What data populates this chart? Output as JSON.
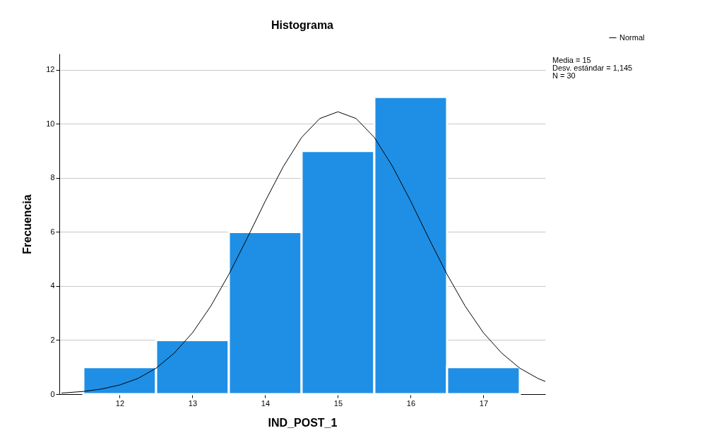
{
  "chart_data": {
    "type": "histogram",
    "title": "Histograma",
    "xlabel": "IND_POST_1",
    "ylabel": "Frecuencia",
    "bins": [
      11.5,
      12.5,
      13.5,
      14.5,
      15.5,
      16.5,
      17.5
    ],
    "values": [
      1,
      2,
      6,
      9,
      11,
      1
    ],
    "color": "#1f8fe5",
    "series": [
      {
        "name": "Normal",
        "type": "line",
        "color": "#000000",
        "x": [
          11.2,
          11.5,
          11.75,
          12,
          12.25,
          12.5,
          12.75,
          13,
          13.25,
          13.5,
          13.75,
          14,
          14.25,
          14.5,
          14.75,
          15,
          15.25,
          15.5,
          15.75,
          16,
          16.25,
          16.5,
          16.75,
          17,
          17.25,
          17.5,
          17.75,
          17.85
        ],
        "values": [
          0.04,
          0.1,
          0.19,
          0.34,
          0.58,
          0.96,
          1.52,
          2.27,
          3.25,
          4.43,
          5.76,
          7.14,
          8.43,
          9.5,
          10.2,
          10.45,
          10.2,
          9.5,
          8.43,
          7.14,
          5.76,
          4.43,
          3.25,
          2.27,
          1.52,
          0.96,
          0.58,
          0.47
        ]
      }
    ],
    "xlim": [
      11.17,
      17.85
    ],
    "xticks": [
      12,
      13,
      14,
      15,
      16,
      17
    ],
    "ylim": [
      0,
      12.6
    ],
    "yticks": [
      0,
      2,
      4,
      6,
      8,
      10,
      12
    ],
    "grid": "y",
    "legend": "top right",
    "annotations": [
      "Media = 15",
      "Desv. estándar = 1,145",
      "N = 30"
    ]
  }
}
